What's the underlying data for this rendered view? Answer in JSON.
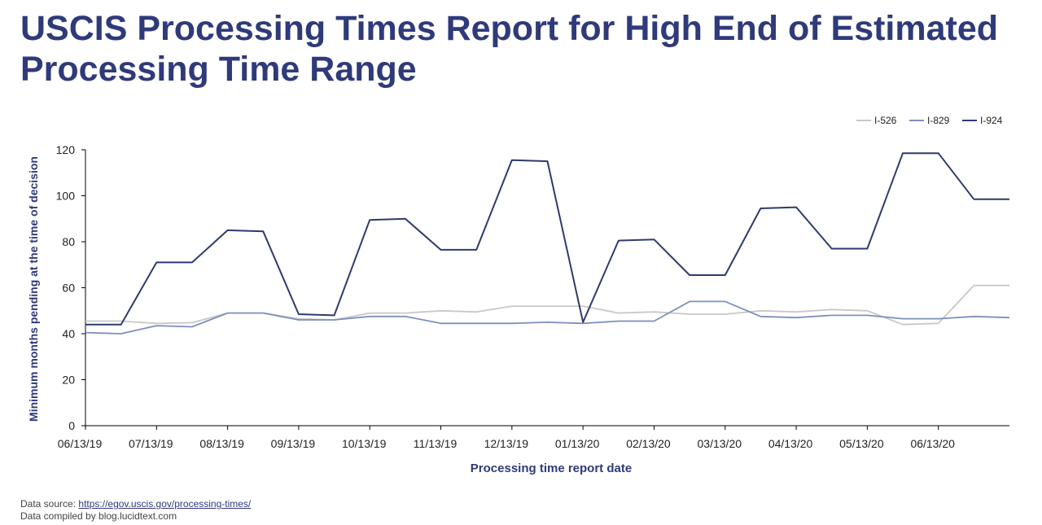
{
  "title": "USCIS Processing Times Report for High End of Estimated Processing Time Range",
  "colors": {
    "title": "#2f3a7a",
    "I-526": "#c8c8c8",
    "I-829": "#7d8fbd",
    "I-924": "#2f3a6e"
  },
  "source": {
    "label": "Data source:",
    "url": "https://egov.uscis.gov/processing-times/",
    "compiled": "Data compiled by blog.lucidtext.com"
  },
  "chart_data": {
    "type": "line",
    "xlabel": "Processing time report date",
    "ylabel": "Minimum months pending at the time of decision",
    "ylim": [
      0,
      120
    ],
    "yticks": [
      0,
      20,
      40,
      60,
      80,
      100,
      120
    ],
    "xticks": [
      "06/13/19",
      "07/13/19",
      "08/13/19",
      "09/13/19",
      "10/13/19",
      "11/13/19",
      "12/13/19",
      "01/13/20",
      "02/13/20",
      "03/13/20",
      "04/13/20",
      "05/13/20",
      "06/13/20"
    ],
    "legend_position": "top-right",
    "grid": false,
    "series": [
      {
        "name": "I-526",
        "values": [
          45.5,
          45.5,
          44.5,
          44.8,
          49,
          49,
          46.5,
          46,
          49,
          49,
          50,
          49.5,
          52,
          52,
          52,
          49,
          49.5,
          48.5,
          48.5,
          50,
          49.5,
          50.5,
          50,
          44,
          44.5,
          61,
          61
        ]
      },
      {
        "name": "I-829",
        "values": [
          40.5,
          40,
          43.5,
          43,
          49,
          49,
          46,
          46,
          47.5,
          47.5,
          44.5,
          44.5,
          44.5,
          45,
          44.5,
          45.5,
          45.5,
          54,
          54,
          47.5,
          47,
          48,
          48,
          46.5,
          46.5,
          47.5,
          47
        ]
      },
      {
        "name": "I-924",
        "values": [
          44,
          44,
          71,
          71,
          85,
          84.5,
          48.5,
          48,
          89.5,
          90,
          76.5,
          76.5,
          115.5,
          115,
          45,
          80.5,
          81,
          65.5,
          65.5,
          94.5,
          95,
          77,
          77,
          118.5,
          118.5,
          98.5,
          98.5
        ]
      }
    ]
  }
}
